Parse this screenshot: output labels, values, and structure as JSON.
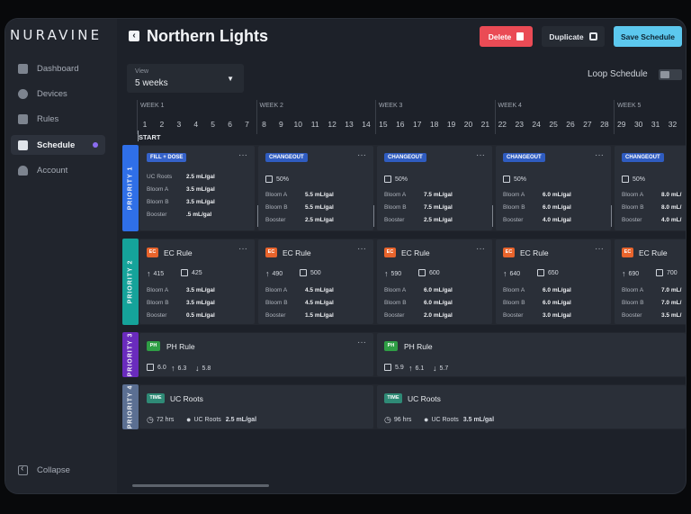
{
  "brand": {
    "logo": "NURAVINE"
  },
  "sidebar": {
    "items": [
      {
        "label": "Dashboard",
        "icon": "dashboard-icon"
      },
      {
        "label": "Devices",
        "icon": "devices-icon"
      },
      {
        "label": "Rules",
        "icon": "rules-icon"
      },
      {
        "label": "Schedule",
        "icon": "schedule-icon",
        "active": true
      },
      {
        "label": "Account",
        "icon": "account-icon"
      }
    ],
    "collapse_label": "Collapse"
  },
  "header": {
    "title": "Northern Lights",
    "delete_label": "Delete",
    "duplicate_label": "Duplicate",
    "save_label": "Save Schedule"
  },
  "view": {
    "label": "View",
    "value": "5 weeks"
  },
  "loop": {
    "label": "Loop Schedule",
    "enabled": false
  },
  "timeline": {
    "weeks": [
      "WEEK 1",
      "WEEK 2",
      "WEEK 3",
      "WEEK 4",
      "WEEK 5"
    ],
    "days": [
      "1",
      "2",
      "3",
      "4",
      "5",
      "6",
      "7",
      "8",
      "9",
      "10",
      "11",
      "12",
      "13",
      "14",
      "15",
      "16",
      "17",
      "18",
      "19",
      "20",
      "21",
      "22",
      "23",
      "24",
      "25",
      "26",
      "27",
      "28",
      "29",
      "30",
      "31",
      "32"
    ],
    "start_label": "START"
  },
  "priorities": [
    "PRIORITY 1",
    "PRIORITY 2",
    "PRIORITY 3",
    "PRIORITY 4"
  ],
  "colors": {
    "p1": "#2f6fe8",
    "p2": "#15a39a",
    "p3": "#6a2bbd",
    "p4": "#5b6f92",
    "accent": "#5cc8ee",
    "danger": "#ea4b55"
  },
  "p1_cards": [
    {
      "tag": "FILL + DOSE",
      "rows": [
        [
          "UC Roots",
          "2.5 mL/gal"
        ],
        [
          "Bloom A",
          "3.5 mL/gal"
        ],
        [
          "Bloom B",
          "3.5 mL/gal"
        ],
        [
          "Booster",
          ".5 mL/gal"
        ]
      ]
    },
    {
      "tag": "CHANGEOUT",
      "pct": "50%",
      "rows": [
        [
          "Bloom A",
          "5.5 mL/gal"
        ],
        [
          "Bloom B",
          "5.5 mL/gal"
        ],
        [
          "Booster",
          "2.5 mL/gal"
        ]
      ]
    },
    {
      "tag": "CHANGEOUT",
      "pct": "50%",
      "rows": [
        [
          "Bloom A",
          "7.5 mL/gal"
        ],
        [
          "Bloom B",
          "7.5 mL/gal"
        ],
        [
          "Booster",
          "2.5 mL/gal"
        ]
      ]
    },
    {
      "tag": "CHANGEOUT",
      "pct": "50%",
      "rows": [
        [
          "Bloom A",
          "6.0 mL/gal"
        ],
        [
          "Bloom B",
          "6.0 mL/gal"
        ],
        [
          "Booster",
          "4.0 mL/gal"
        ]
      ]
    },
    {
      "tag": "CHANGEOUT",
      "pct": "50%",
      "rows": [
        [
          "Bloom A",
          "8.0 mL/"
        ],
        [
          "Bloom B",
          "8.0 mL/"
        ],
        [
          "Booster",
          "4.0 mL/"
        ]
      ]
    }
  ],
  "p2_cards": [
    {
      "chip": "EC",
      "name": "EC Rule",
      "up": "415",
      "ctr": "425",
      "rows": [
        [
          "Bloom A",
          "3.5 mL/gal"
        ],
        [
          "Bloom B",
          "3.5 mL/gal"
        ],
        [
          "Booster",
          "0.5 mL/gal"
        ]
      ]
    },
    {
      "chip": "EC",
      "name": "EC Rule",
      "up": "490",
      "ctr": "500",
      "rows": [
        [
          "Bloom A",
          "4.5 mL/gal"
        ],
        [
          "Bloom B",
          "4.5 mL/gal"
        ],
        [
          "Booster",
          "1.5 mL/gal"
        ]
      ]
    },
    {
      "chip": "EC",
      "name": "EC Rule",
      "up": "590",
      "ctr": "600",
      "rows": [
        [
          "Bloom A",
          "6.0 mL/gal"
        ],
        [
          "Bloom B",
          "6.0 mL/gal"
        ],
        [
          "Booster",
          "2.0 mL/gal"
        ]
      ]
    },
    {
      "chip": "EC",
      "name": "EC Rule",
      "up": "640",
      "ctr": "650",
      "rows": [
        [
          "Bloom A",
          "6.0 mL/gal"
        ],
        [
          "Bloom B",
          "6.0 mL/gal"
        ],
        [
          "Booster",
          "3.0 mL/gal"
        ]
      ]
    },
    {
      "chip": "EC",
      "name": "EC Rule",
      "up": "690",
      "ctr": "700",
      "rows": [
        [
          "Bloom A",
          "7.0 mL/"
        ],
        [
          "Bloom B",
          "7.0 mL/"
        ],
        [
          "Booster",
          "3.5 mL/"
        ]
      ]
    }
  ],
  "p3_cards": [
    {
      "chip": "PH",
      "name": "PH Rule",
      "ctr": "6.0",
      "up": "6.3",
      "down": "5.8"
    },
    {
      "chip": "PH",
      "name": "PH Rule",
      "ctr": "5.9",
      "up": "6.1",
      "down": "5.7"
    }
  ],
  "p4_cards": [
    {
      "chip": "TIME",
      "name": "UC Roots",
      "hours": "72 hrs",
      "nutrient": "UC Roots",
      "dose": "2.5 mL/gal"
    },
    {
      "chip": "TIME",
      "name": "UC Roots",
      "hours": "96 hrs",
      "nutrient": "UC Roots",
      "dose": "3.5 mL/gal"
    }
  ]
}
